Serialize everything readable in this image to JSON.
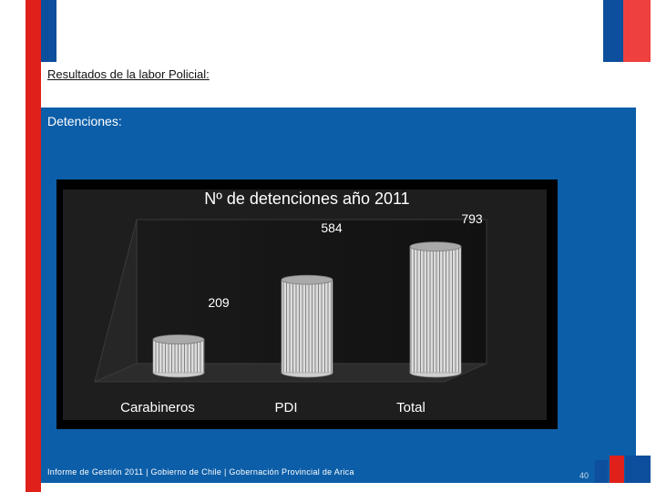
{
  "slide": {
    "heading": "Resultados de la labor Policial:",
    "subheading": "Detenciones:",
    "footer": "Informe de Gestión 2011 | Gobierno de Chile | Gobernación Provincial de Arica",
    "page_number": "40"
  },
  "colors": {
    "brand_red": "#e0201a",
    "brand_blue": "#0d4f9c",
    "panel_blue": "#0c5ea8",
    "chart_bg": "#000000",
    "bar_fill": "#d9d9d9"
  },
  "chart_data": {
    "type": "bar",
    "style": "3d-cylinder",
    "title": "Nº de detenciones año 2011",
    "categories": [
      "Carabineros",
      "PDI",
      "Total"
    ],
    "values": [
      209,
      584,
      793
    ],
    "ylim": [
      0,
      900
    ],
    "grid": false,
    "legend": "none"
  }
}
